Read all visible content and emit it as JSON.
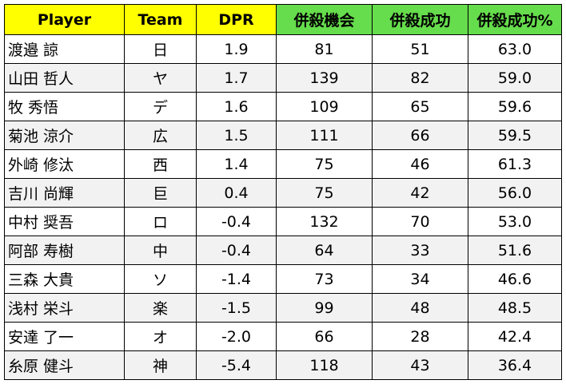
{
  "table": {
    "header": [
      "Player",
      "Team",
      "DPR",
      "併殺機会",
      "併殺成功",
      "併殺成功%"
    ],
    "rows": [
      [
        "渡邉 諒",
        "日",
        "1.9",
        "81",
        "51",
        "63.0"
      ],
      [
        "山田 哲人",
        "ヤ",
        "1.7",
        "139",
        "82",
        "59.0"
      ],
      [
        "牧 秀悟",
        "デ",
        "1.6",
        "109",
        "65",
        "59.6"
      ],
      [
        "菊池 涼介",
        "広",
        "1.5",
        "111",
        "66",
        "59.5"
      ],
      [
        "外崎 修汰",
        "西",
        "1.4",
        "75",
        "46",
        "61.3"
      ],
      [
        "吉川 尚輝",
        "巨",
        "0.4",
        "75",
        "42",
        "56.0"
      ],
      [
        "中村 奨吾",
        "ロ",
        "-0.4",
        "132",
        "70",
        "53.0"
      ],
      [
        "阿部 寿樹",
        "中",
        "-0.4",
        "64",
        "33",
        "51.6"
      ],
      [
        "三森 大貴",
        "ソ",
        "-1.4",
        "73",
        "34",
        "46.6"
      ],
      [
        "浅村 栄斗",
        "楽",
        "-1.5",
        "99",
        "48",
        "48.5"
      ],
      [
        "安達 了一",
        "オ",
        "-2.0",
        "66",
        "28",
        "42.4"
      ],
      [
        "糸原 健斗",
        "神",
        "-5.4",
        "118",
        "43",
        "36.4"
      ]
    ]
  }
}
